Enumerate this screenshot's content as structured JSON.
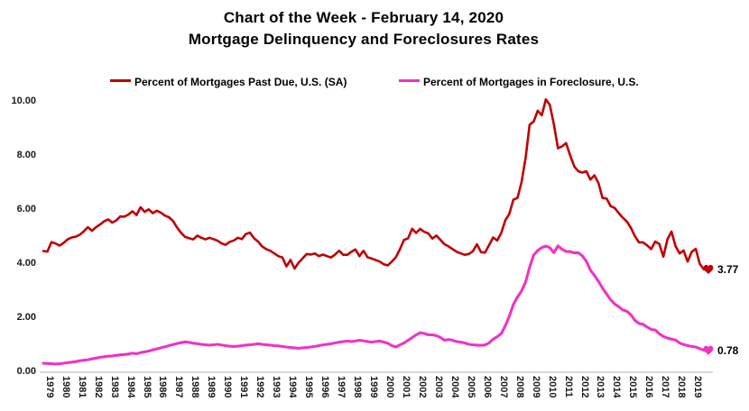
{
  "title": {
    "line1": "Chart of the Week - February 14, 2020",
    "line2": "Mortgage Delinquency and Foreclosures Rates"
  },
  "colors": {
    "past_due_line": "#C00000",
    "foreclosure_line": "#EF33C6",
    "axis_line": "#D9D9D9",
    "text": "#000000"
  },
  "axes": {
    "y_ticks": [
      {
        "label": "10.00",
        "value": 10
      },
      {
        "label": "8.00",
        "value": 8
      },
      {
        "label": "6.00",
        "value": 6
      },
      {
        "label": "4.00",
        "value": 4
      },
      {
        "label": "2.00",
        "value": 2
      },
      {
        "label": "0.00",
        "value": 0
      }
    ],
    "x_years": [
      "1979",
      "1980",
      "1981",
      "1982",
      "1983",
      "1984",
      "1985",
      "1986",
      "1987",
      "1988",
      "1989",
      "1990",
      "1991",
      "1992",
      "1993",
      "1994",
      "1995",
      "1996",
      "1997",
      "1998",
      "1999",
      "2000",
      "2001",
      "2002",
      "2003",
      "2004",
      "2005",
      "2006",
      "2007",
      "2008",
      "2009",
      "2010",
      "2011",
      "2012",
      "2013",
      "2014",
      "2015",
      "2016",
      "2017",
      "2018",
      "2019"
    ]
  },
  "chart_data": {
    "type": "line",
    "frequency": "quarterly",
    "x_start": "1979Q1",
    "x_end": "2019Q4",
    "title": "Chart of the Week - February 14, 2020 / Mortgage Delinquency and Foreclosures Rates",
    "ylim": [
      0,
      10
    ],
    "grid": false,
    "legend_position": "top",
    "marker": "heart",
    "series": [
      {
        "name": "Percent of Mortgages Past Due, U.S. (SA)",
        "color": "#C00000",
        "end_label": "3.77",
        "values": [
          4.45,
          4.43,
          4.78,
          4.73,
          4.65,
          4.75,
          4.88,
          4.95,
          4.98,
          5.05,
          5.18,
          5.33,
          5.2,
          5.33,
          5.43,
          5.55,
          5.62,
          5.5,
          5.58,
          5.73,
          5.72,
          5.8,
          5.92,
          5.78,
          6.07,
          5.9,
          5.99,
          5.85,
          5.94,
          5.87,
          5.76,
          5.7,
          5.56,
          5.32,
          5.12,
          4.97,
          4.92,
          4.88,
          5.02,
          4.94,
          4.88,
          4.94,
          4.89,
          4.83,
          4.73,
          4.68,
          4.79,
          4.84,
          4.94,
          4.89,
          5.08,
          5.13,
          4.92,
          4.8,
          4.62,
          4.52,
          4.46,
          4.36,
          4.26,
          4.21,
          3.88,
          4.12,
          3.8,
          4.02,
          4.18,
          4.34,
          4.32,
          4.36,
          4.26,
          4.32,
          4.26,
          4.21,
          4.32,
          4.46,
          4.31,
          4.31,
          4.42,
          4.51,
          4.26,
          4.46,
          4.22,
          4.17,
          4.12,
          4.06,
          3.96,
          3.92,
          4.06,
          4.22,
          4.52,
          4.86,
          4.92,
          5.27,
          5.12,
          5.27,
          5.16,
          5.1,
          4.91,
          5.02,
          4.86,
          4.7,
          4.62,
          4.52,
          4.42,
          4.36,
          4.31,
          4.34,
          4.44,
          4.7,
          4.41,
          4.39,
          4.67,
          4.95,
          4.84,
          5.12,
          5.59,
          5.82,
          6.35,
          6.41,
          6.99,
          7.88,
          9.12,
          9.24,
          9.64,
          9.47,
          10.06,
          9.85,
          9.13,
          8.25,
          8.32,
          8.44,
          7.99,
          7.58,
          7.4,
          7.35,
          7.4,
          7.09,
          7.25,
          6.96,
          6.41,
          6.39,
          6.11,
          6.04,
          5.85,
          5.68,
          5.54,
          5.3,
          4.99,
          4.77,
          4.77,
          4.66,
          4.52,
          4.8,
          4.71,
          4.24,
          4.88,
          5.17,
          4.63,
          4.36,
          4.47,
          4.06,
          4.42,
          4.53,
          3.97,
          3.77
        ]
      },
      {
        "name": "Percent of Mortgages in Foreclosure, U.S.",
        "color": "#EF33C6",
        "end_label": "0.78",
        "values": [
          0.3,
          0.29,
          0.28,
          0.27,
          0.28,
          0.3,
          0.32,
          0.34,
          0.36,
          0.39,
          0.41,
          0.43,
          0.46,
          0.49,
          0.52,
          0.54,
          0.56,
          0.57,
          0.59,
          0.61,
          0.62,
          0.64,
          0.67,
          0.65,
          0.69,
          0.72,
          0.75,
          0.79,
          0.83,
          0.87,
          0.91,
          0.95,
          0.99,
          1.03,
          1.06,
          1.09,
          1.07,
          1.04,
          1.02,
          1.0,
          0.98,
          0.97,
          0.98,
          1.0,
          0.97,
          0.95,
          0.93,
          0.92,
          0.93,
          0.95,
          0.97,
          0.98,
          1.0,
          1.02,
          1.0,
          0.98,
          0.97,
          0.95,
          0.94,
          0.92,
          0.9,
          0.88,
          0.87,
          0.85,
          0.87,
          0.88,
          0.9,
          0.92,
          0.95,
          0.98,
          1.0,
          1.02,
          1.05,
          1.08,
          1.1,
          1.12,
          1.1,
          1.12,
          1.15,
          1.13,
          1.1,
          1.08,
          1.1,
          1.12,
          1.08,
          1.04,
          0.95,
          0.9,
          0.98,
          1.05,
          1.15,
          1.25,
          1.35,
          1.43,
          1.4,
          1.35,
          1.35,
          1.32,
          1.25,
          1.15,
          1.18,
          1.15,
          1.1,
          1.08,
          1.05,
          1.0,
          0.98,
          0.97,
          0.96,
          0.98,
          1.05,
          1.19,
          1.28,
          1.4,
          1.69,
          2.04,
          2.47,
          2.75,
          2.97,
          3.3,
          3.85,
          4.3,
          4.47,
          4.58,
          4.63,
          4.57,
          4.39,
          4.64,
          4.52,
          4.43,
          4.43,
          4.38,
          4.39,
          4.27,
          4.07,
          3.74,
          3.55,
          3.33,
          3.08,
          2.86,
          2.65,
          2.49,
          2.39,
          2.27,
          2.22,
          2.09,
          1.88,
          1.77,
          1.74,
          1.64,
          1.55,
          1.53,
          1.39,
          1.29,
          1.23,
          1.19,
          1.16,
          1.05,
          0.99,
          0.95,
          0.92,
          0.9,
          0.84,
          0.78
        ]
      }
    ]
  }
}
